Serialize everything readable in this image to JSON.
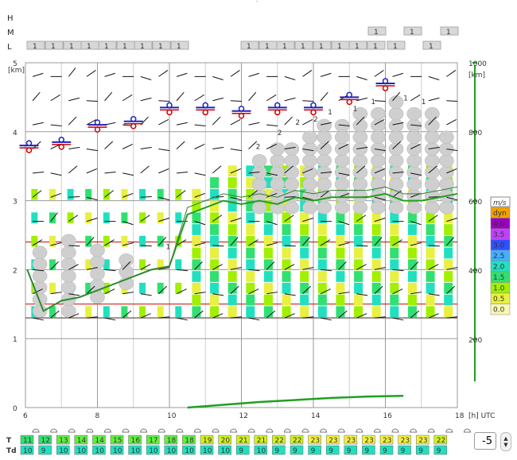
{
  "top_handle": "˘",
  "level_labels": [
    "H",
    "M",
    "L"
  ],
  "cloud_rows": {
    "M": [
      "1",
      "1",
      "1"
    ],
    "L": [
      "1",
      "1",
      "1",
      "1",
      "1",
      "1",
      "1",
      "1",
      "1",
      "1",
      "1",
      "1",
      "1",
      "1",
      "1",
      "1",
      "1",
      "1",
      "1"
    ]
  },
  "colorbar": {
    "unit": "m/s",
    "labels": [
      "dyn",
      "4.0",
      "3.5",
      "3.0",
      "2.5",
      "2.0",
      "1.5",
      "1.0",
      "0.5",
      "0.0"
    ],
    "colors": [
      "#f0a000",
      "#9c00c0",
      "#c040ff",
      "#3050ff",
      "#40b0ff",
      "#20e0c0",
      "#30e070",
      "#a0f000",
      "#e8f040",
      "#f8f8b0"
    ]
  },
  "chart_data": {
    "type": "meteogram",
    "x_axis": {
      "label": "[h] UTC",
      "ticks": [
        "6",
        "8",
        "10",
        "12",
        "14",
        "16",
        "18"
      ],
      "range": [
        6,
        18
      ]
    },
    "y_left": {
      "unit": "[km]",
      "ticks": [
        "0",
        "1",
        "2",
        "3",
        "4",
        "5"
      ],
      "range": [
        0,
        5
      ]
    },
    "y_right": {
      "unit": "[km]",
      "ticks": [
        "200",
        "400",
        "600",
        "800",
        "1000"
      ],
      "range": [
        0,
        1000
      ]
    },
    "cloud_labels": [
      {
        "x": 12.4,
        "y": 3.75,
        "text": "2"
      },
      {
        "x": 13.0,
        "y": 3.95,
        "text": "2"
      },
      {
        "x": 13.5,
        "y": 4.1,
        "text": "2"
      },
      {
        "x": 14.0,
        "y": 4.15,
        "text": "2"
      },
      {
        "x": 14.4,
        "y": 4.25,
        "text": "1"
      },
      {
        "x": 15.1,
        "y": 4.3,
        "text": "1"
      },
      {
        "x": 15.6,
        "y": 4.4,
        "text": "1"
      },
      {
        "x": 16.5,
        "y": 4.45,
        "text": "1"
      },
      {
        "x": 17.0,
        "y": 4.4,
        "text": "1"
      },
      {
        "x": 9.9,
        "y": 2.3,
        "text": "1"
      }
    ],
    "boundary_layer_km": [
      [
        6.05,
        2.0
      ],
      [
        6.5,
        1.4
      ],
      [
        7.0,
        1.55
      ],
      [
        7.5,
        1.6
      ],
      [
        8.0,
        1.7
      ],
      [
        8.5,
        1.8
      ],
      [
        9.0,
        1.9
      ],
      [
        9.5,
        2.0
      ],
      [
        10.0,
        2.05
      ],
      [
        10.5,
        2.8
      ],
      [
        11.0,
        2.9
      ],
      [
        11.5,
        3.0
      ],
      [
        12.0,
        2.95
      ],
      [
        12.5,
        3.0
      ],
      [
        13.0,
        2.95
      ],
      [
        13.5,
        3.05
      ],
      [
        14.0,
        3.0
      ],
      [
        14.5,
        3.05
      ],
      [
        15.0,
        3.05
      ],
      [
        15.5,
        3.05
      ],
      [
        16.0,
        3.1
      ],
      [
        16.5,
        3.0
      ],
      [
        17.0,
        3.0
      ],
      [
        17.5,
        3.05
      ],
      [
        18.0,
        3.1
      ]
    ],
    "precip_line": [
      [
        10.5,
        0.0
      ],
      [
        11.5,
        0.04
      ],
      [
        12.5,
        0.08
      ],
      [
        13.5,
        0.11
      ],
      [
        14.5,
        0.14
      ],
      [
        15.5,
        0.16
      ],
      [
        16.5,
        0.17
      ]
    ],
    "balloon_markers": [
      [
        6.1,
        3.8
      ],
      [
        7.0,
        3.85
      ],
      [
        8.0,
        4.1
      ],
      [
        9.0,
        4.15
      ],
      [
        10.0,
        4.35
      ],
      [
        11.0,
        4.35
      ],
      [
        12.0,
        4.3
      ],
      [
        13.0,
        4.35
      ],
      [
        14.0,
        4.35
      ],
      [
        15.0,
        4.5
      ],
      [
        16.0,
        4.7
      ]
    ],
    "temperature_T": [
      "11",
      "12",
      "13",
      "14",
      "14",
      "15",
      "16",
      "17",
      "18",
      "18",
      "19",
      "20",
      "21",
      "21",
      "22",
      "22",
      "23",
      "23",
      "23",
      "23",
      "23",
      "23",
      "23",
      "22"
    ],
    "dewpoint_Td": [
      "10",
      "9",
      "10",
      "10",
      "10",
      "10",
      "10",
      "10",
      "10",
      "10",
      "10",
      "10",
      "9",
      "10",
      "9",
      "9",
      "9",
      "9",
      "9",
      "9",
      "9",
      "9",
      "9",
      "9"
    ],
    "row_labels": {
      "T": "T",
      "Td": "Td"
    }
  },
  "colors": {
    "grid": "#9a9a9a",
    "green_axis": "#20a020",
    "inversion": "#d00000",
    "cloud_gray": "#cfcfcf"
  },
  "spinner_value": "-5"
}
